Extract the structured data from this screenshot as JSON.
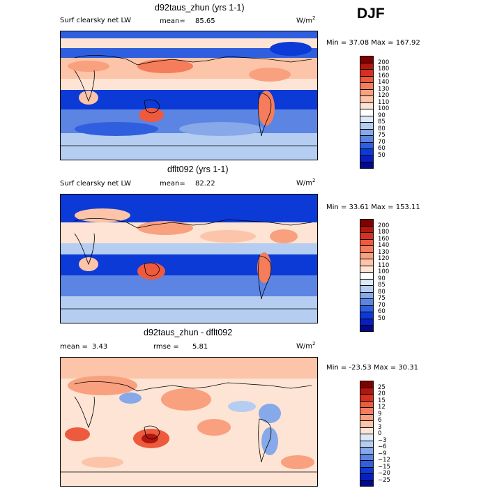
{
  "season": "DJF",
  "units": {
    "base": "W/m",
    "exp": "2"
  },
  "panels": [
    {
      "title": "d92taus_zhun (yrs 1-1)",
      "subtitle": "Surf clearsky net LW",
      "stat_label": "mean=",
      "stat_value": "85.65",
      "minmax": "Min =  37.08 Max = 167.92",
      "colorbar": {
        "labels": [
          "200",
          "180",
          "160",
          "140",
          "130",
          "120",
          "110",
          "100",
          "90",
          "85",
          "80",
          "75",
          "70",
          "60",
          "50"
        ],
        "colors": [
          "#800000",
          "#b0170e",
          "#d7301f",
          "#ee5a3e",
          "#f57d5c",
          "#f9a07f",
          "#fcc4a8",
          "#fde4d4",
          "#ffffff",
          "#dce9f8",
          "#b4cdf0",
          "#87a9e9",
          "#5b84e3",
          "#2f5fde",
          "#0c3ad6",
          "#0a1ec0",
          "#000a8c"
        ]
      }
    },
    {
      "title": "dflt092 (yrs 1-1)",
      "subtitle": "Surf clearsky net LW",
      "stat_label": "mean=",
      "stat_value": "82.22",
      "minmax": "Min =  33.61 Max = 153.11",
      "colorbar": {
        "labels": [
          "200",
          "180",
          "160",
          "140",
          "130",
          "120",
          "110",
          "100",
          "90",
          "85",
          "80",
          "75",
          "70",
          "60",
          "50"
        ],
        "colors": [
          "#800000",
          "#b0170e",
          "#d7301f",
          "#ee5a3e",
          "#f57d5c",
          "#f9a07f",
          "#fcc4a8",
          "#fde4d4",
          "#ffffff",
          "#dce9f8",
          "#b4cdf0",
          "#87a9e9",
          "#5b84e3",
          "#2f5fde",
          "#0c3ad6",
          "#0a1ec0",
          "#000a8c"
        ]
      }
    },
    {
      "title": "d92taus_zhun - dflt092",
      "stat1_label": "mean =",
      "stat1_value": "3.43",
      "stat2_label": "rmse =",
      "stat2_value": "5.81",
      "minmax": "Min = -23.53  Max =  30.31",
      "colorbar": {
        "labels": [
          "25",
          "20",
          "15",
          "12",
          "9",
          "6",
          "3",
          "0",
          "−3",
          "−6",
          "−9",
          "−12",
          "−15",
          "−20",
          "−25"
        ],
        "colors": [
          "#800000",
          "#b0170e",
          "#d7301f",
          "#ee5a3e",
          "#f57d5c",
          "#f9a07f",
          "#fcc4a8",
          "#fde4d4",
          "#dce9f8",
          "#b4cdf0",
          "#87a9e9",
          "#5b84e3",
          "#2f5fde",
          "#0c3ad6",
          "#0a1ec0",
          "#000a8c"
        ]
      }
    }
  ],
  "chart_data": [
    {
      "type": "heatmap",
      "title": "d92taus_zhun (yrs 1-1)",
      "variable": "Surf clearsky net LW",
      "units": "W/m^2",
      "season": "DJF",
      "mean": 85.65,
      "min": 37.08,
      "max": 167.92,
      "contour_levels": [
        50,
        60,
        70,
        75,
        80,
        85,
        90,
        100,
        110,
        120,
        130,
        140,
        160,
        180,
        200
      ]
    },
    {
      "type": "heatmap",
      "title": "dflt092 (yrs 1-1)",
      "variable": "Surf clearsky net LW",
      "units": "W/m^2",
      "season": "DJF",
      "mean": 82.22,
      "min": 33.61,
      "max": 153.11,
      "contour_levels": [
        50,
        60,
        70,
        75,
        80,
        85,
        90,
        100,
        110,
        120,
        130,
        140,
        160,
        180,
        200
      ]
    },
    {
      "type": "heatmap",
      "title": "d92taus_zhun - dflt092",
      "units": "W/m^2",
      "season": "DJF",
      "mean": 3.43,
      "rmse": 5.81,
      "min": -23.53,
      "max": 30.31,
      "contour_levels": [
        -25,
        -20,
        -15,
        -12,
        -9,
        -6,
        -3,
        0,
        3,
        6,
        9,
        12,
        15,
        20,
        25
      ]
    }
  ]
}
